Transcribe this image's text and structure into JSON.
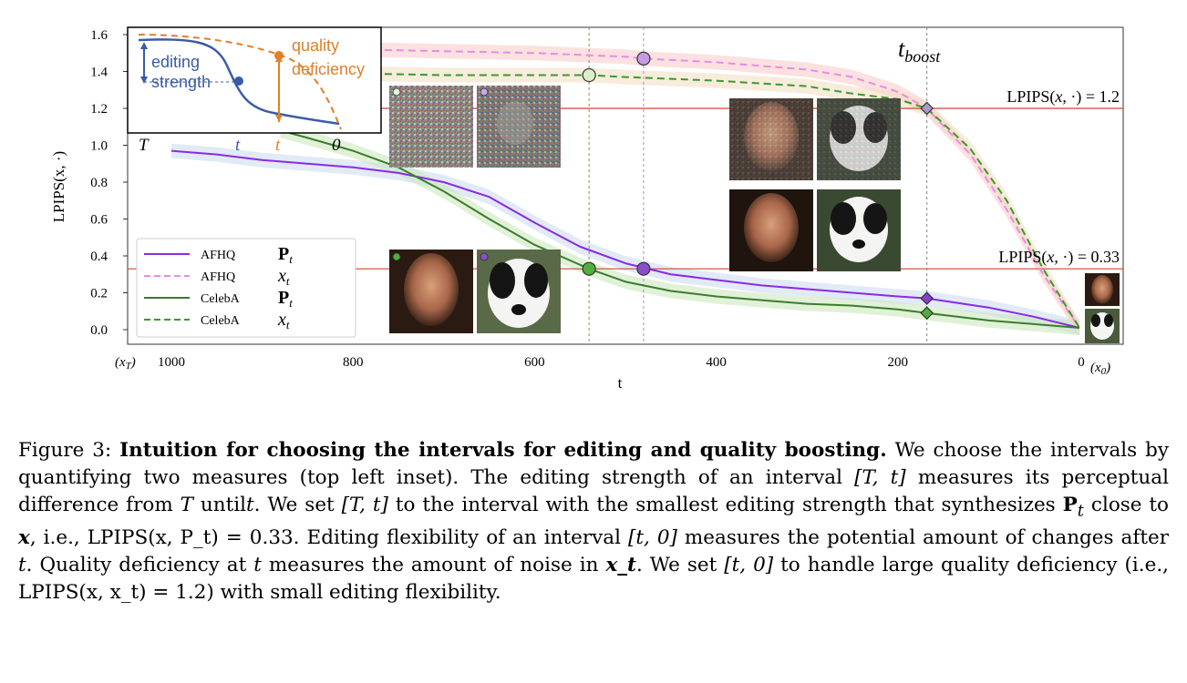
{
  "chart_data": {
    "type": "line",
    "xlabel": "t",
    "ylabel": "LPIPS(x, ·)",
    "xlim": [
      1000,
      0
    ],
    "ylim": [
      0.0,
      1.6
    ],
    "x_ticks": [
      "1000",
      "800",
      "600",
      "400",
      "200",
      "0"
    ],
    "x_tick_values": [
      1000,
      800,
      600,
      400,
      200,
      0
    ],
    "x_start_note": "(x_T)",
    "x_end_note": "(x_0)",
    "y_ticks": [
      "0.0",
      "0.2",
      "0.4",
      "0.6",
      "0.8",
      "1.0",
      "1.2",
      "1.4",
      "1.6"
    ],
    "y_tick_values": [
      0.0,
      0.2,
      0.4,
      0.6,
      0.8,
      1.0,
      1.2,
      1.4,
      1.6
    ],
    "t_boost_label": "t_boost",
    "thresholds": [
      {
        "value": 1.2,
        "label": "LPIPS(x, ·) = 1.2",
        "color": "#d9412f"
      },
      {
        "value": 0.33,
        "label": "LPIPS(x, ·) = 0.33",
        "color": "#d9412f"
      }
    ],
    "vlines": [
      {
        "t": 540,
        "color": "#9a8a5a"
      },
      {
        "t": 480,
        "color": "#9f90d0"
      },
      {
        "t": 168,
        "color": "#888888"
      }
    ],
    "series": [
      {
        "name": "AFHQ",
        "symbol": "P_t",
        "style": "solid",
        "color": "#8a2be2",
        "x": [
          1000,
          950,
          900,
          850,
          800,
          750,
          700,
          650,
          600,
          550,
          500,
          450,
          400,
          350,
          300,
          250,
          200,
          168,
          100,
          50,
          0
        ],
        "y": [
          0.97,
          0.95,
          0.92,
          0.9,
          0.88,
          0.85,
          0.8,
          0.72,
          0.58,
          0.45,
          0.36,
          0.3,
          0.27,
          0.24,
          0.22,
          0.2,
          0.18,
          0.17,
          0.12,
          0.07,
          0.01
        ]
      },
      {
        "name": "AFHQ",
        "symbol": "x_t",
        "style": "dashed",
        "color": "#ea8be8",
        "x": [
          1000,
          900,
          800,
          700,
          600,
          500,
          480,
          400,
          300,
          250,
          200,
          168,
          120,
          80,
          40,
          0
        ],
        "y": [
          1.55,
          1.53,
          1.52,
          1.51,
          1.5,
          1.48,
          1.47,
          1.45,
          1.41,
          1.37,
          1.29,
          1.2,
          0.95,
          0.65,
          0.3,
          0.01
        ]
      },
      {
        "name": "CelebA",
        "symbol": "P_t",
        "style": "solid",
        "color": "#3a7d2c",
        "x": [
          880,
          850,
          800,
          750,
          700,
          650,
          600,
          540,
          500,
          450,
          400,
          350,
          300,
          250,
          200,
          168,
          100,
          50,
          0
        ],
        "y": [
          1.08,
          1.04,
          0.97,
          0.88,
          0.75,
          0.6,
          0.46,
          0.33,
          0.26,
          0.21,
          0.18,
          0.16,
          0.14,
          0.13,
          0.11,
          0.09,
          0.05,
          0.03,
          0.01
        ]
      },
      {
        "name": "CelebA",
        "symbol": "x_t",
        "style": "dashed",
        "color": "#3a9a2c",
        "x": [
          1000,
          900,
          800,
          700,
          600,
          540,
          500,
          400,
          300,
          250,
          200,
          168,
          120,
          80,
          40,
          0
        ],
        "y": [
          1.42,
          1.4,
          1.39,
          1.38,
          1.38,
          1.38,
          1.37,
          1.35,
          1.32,
          1.28,
          1.25,
          1.2,
          0.98,
          0.7,
          0.33,
          0.01
        ]
      }
    ],
    "markers": [
      {
        "t": 480,
        "y": 1.47,
        "color": "#c79be0",
        "shape": "circle"
      },
      {
        "t": 540,
        "y": 1.38,
        "color": "#d8efc8",
        "shape": "circle"
      },
      {
        "t": 540,
        "y": 0.33,
        "color": "#4fae3c",
        "shape": "circle"
      },
      {
        "t": 480,
        "y": 0.33,
        "color": "#8a4fc8",
        "shape": "circle"
      },
      {
        "t": 168,
        "y": 1.2,
        "color": "#a79ad0",
        "shape": "diamond"
      },
      {
        "t": 168,
        "y": 0.17,
        "color": "#8a3fc8",
        "shape": "diamond"
      },
      {
        "t": 168,
        "y": 0.09,
        "color": "#4fae3c",
        "shape": "diamond"
      }
    ],
    "legend": {
      "placement": "lower-left",
      "entries": [
        {
          "name": "AFHQ",
          "symbol": "P_t"
        },
        {
          "name": "AFHQ",
          "symbol": "x_t"
        },
        {
          "name": "CelebA",
          "symbol": "P_t"
        },
        {
          "name": "CelebA",
          "symbol": "x_t"
        }
      ]
    },
    "inset": {
      "placement": "top-left",
      "labels": {
        "editing": "editing",
        "strength": "strength",
        "quality": "quality",
        "deficiency": "deficiency"
      },
      "axis_labels": [
        "T",
        "t",
        "t",
        "0"
      ]
    }
  },
  "caption": {
    "prefix": "Figure 3:",
    "bold_title": "Intuition for choosing the intervals for editing and quality boosting.",
    "s1": "We choose the intervals by quantifying two measures (top left inset). The editing strength of an interval",
    "s2": "measures its perceptual difference from",
    "s3": "until",
    "s4": ". We set",
    "s5": "to the interval with the smallest editing strength that synthesizes",
    "s6": "close to",
    "s7": ", i.e.,",
    "s8": ". Editing flexibility of an interval",
    "s9": "measures the potential amount of changes after",
    "s10": ". Quality deficiency at",
    "s11": "measures the amount of noise in",
    "s12": ". We set",
    "s13": "to handle large quality deficiency (i.e.,",
    "s14": ") with small editing flexibility.",
    "m_interval_Tt": "[T, t]",
    "m_T": "T",
    "m_t": "t",
    "m_Pt": "P",
    "m_x": "x",
    "m_lpips_p": "LPIPS(x, P_t) = 0.33",
    "m_interval_t0": "[t, 0]",
    "m_xt": "x_t",
    "m_lpips_x": "LPIPS(x, x_t) = 1.2"
  }
}
